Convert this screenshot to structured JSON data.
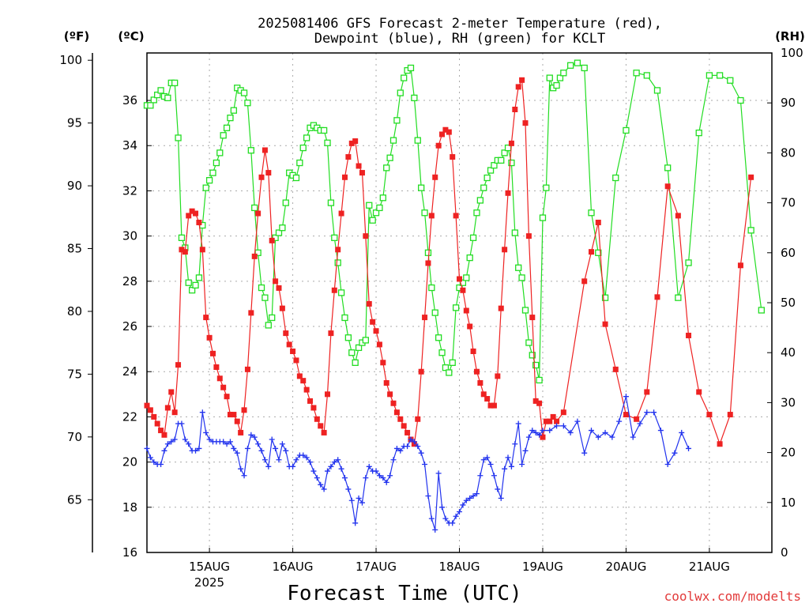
{
  "chart_data": {
    "type": "line",
    "title_line1": "2025081406 GFS Forecast 2-meter Temperature (red),",
    "title_line2": "Dewpoint (blue), RH (green) for KCLT",
    "xlabel": "Forecast Time (UTC)",
    "unit_f": "(ºF)",
    "unit_c": "(ºC)",
    "unit_rh": "(RH)",
    "credit": "coolwx.com/modelts",
    "year_label": "2025",
    "x_start_hours_after_15aug_00z": -18,
    "x_end_hours_after_15aug_00z": 162,
    "x_ticks": [
      {
        "label": "15AUG",
        "h": 0
      },
      {
        "label": "16AUG",
        "h": 24
      },
      {
        "label": "17AUG",
        "h": 48
      },
      {
        "label": "18AUG",
        "h": 72
      },
      {
        "label": "19AUG",
        "h": 96
      },
      {
        "label": "20AUG",
        "h": 120
      },
      {
        "label": "21AUG",
        "h": 144
      }
    ],
    "y_c_range": [
      16,
      38.1
    ],
    "y_f_ticks": [
      65,
      70,
      75,
      80,
      85,
      90,
      95,
      100
    ],
    "y_c_ticks": [
      16,
      18,
      20,
      22,
      24,
      26,
      28,
      30,
      32,
      34,
      36
    ],
    "y_rh_range": [
      0,
      100
    ],
    "y_rh_ticks": [
      0,
      10,
      20,
      30,
      40,
      50,
      60,
      70,
      80,
      90,
      100
    ],
    "grid": true,
    "colors": {
      "temperature": "#ee2222",
      "dewpoint": "#2233ee",
      "rh": "#22dd22"
    },
    "temperature_c": [
      [
        -18,
        22.5
      ],
      [
        -17,
        22.3
      ],
      [
        -16,
        22.0
      ],
      [
        -15,
        21.7
      ],
      [
        -14,
        21.4
      ],
      [
        -13,
        21.2
      ],
      [
        -12,
        22.4
      ],
      [
        -11,
        23.1
      ],
      [
        -10,
        22.2
      ],
      [
        -9,
        24.3
      ],
      [
        -8,
        29.4
      ],
      [
        -7,
        29.3
      ],
      [
        -6,
        30.9
      ],
      [
        -5,
        31.1
      ],
      [
        -4,
        31.0
      ],
      [
        -3,
        30.6
      ],
      [
        -2,
        29.4
      ],
      [
        -1,
        26.4
      ],
      [
        0,
        25.5
      ],
      [
        1,
        24.8
      ],
      [
        2,
        24.2
      ],
      [
        3,
        23.7
      ],
      [
        4,
        23.3
      ],
      [
        5,
        22.9
      ],
      [
        6,
        22.1
      ],
      [
        7,
        22.1
      ],
      [
        8,
        21.8
      ],
      [
        9,
        21.3
      ],
      [
        10,
        22.3
      ],
      [
        11,
        24.1
      ],
      [
        12,
        26.6
      ],
      [
        13,
        29.1
      ],
      [
        14,
        31.0
      ],
      [
        15,
        32.6
      ],
      [
        16,
        33.8
      ],
      [
        17,
        32.8
      ],
      [
        18,
        29.8
      ],
      [
        19,
        28.0
      ],
      [
        20,
        27.7
      ],
      [
        21,
        26.8
      ],
      [
        22,
        25.7
      ],
      [
        23,
        25.2
      ],
      [
        24,
        24.9
      ],
      [
        25,
        24.5
      ],
      [
        26,
        23.8
      ],
      [
        27,
        23.6
      ],
      [
        28,
        23.2
      ],
      [
        29,
        22.7
      ],
      [
        30,
        22.4
      ],
      [
        31,
        21.9
      ],
      [
        32,
        21.6
      ],
      [
        33,
        21.3
      ],
      [
        34,
        23.0
      ],
      [
        35,
        25.7
      ],
      [
        36,
        27.6
      ],
      [
        37,
        29.4
      ],
      [
        38,
        31.0
      ],
      [
        39,
        32.6
      ],
      [
        40,
        33.5
      ],
      [
        41,
        34.1
      ],
      [
        42,
        34.2
      ],
      [
        43,
        33.1
      ],
      [
        44,
        32.8
      ],
      [
        45,
        30.0
      ],
      [
        46,
        27.0
      ],
      [
        47,
        26.2
      ],
      [
        48,
        25.8
      ],
      [
        49,
        25.2
      ],
      [
        50,
        24.4
      ],
      [
        51,
        23.5
      ],
      [
        52,
        23.0
      ],
      [
        53,
        22.6
      ],
      [
        54,
        22.2
      ],
      [
        55,
        21.9
      ],
      [
        56,
        21.6
      ],
      [
        57,
        21.3
      ],
      [
        58,
        21.0
      ],
      [
        59,
        20.8
      ],
      [
        60,
        21.9
      ],
      [
        61,
        24.0
      ],
      [
        62,
        26.4
      ],
      [
        63,
        28.8
      ],
      [
        64,
        30.9
      ],
      [
        65,
        32.6
      ],
      [
        66,
        34.0
      ],
      [
        67,
        34.5
      ],
      [
        68,
        34.7
      ],
      [
        69,
        34.6
      ],
      [
        70,
        33.5
      ],
      [
        71,
        30.9
      ],
      [
        72,
        28.1
      ],
      [
        73,
        27.6
      ],
      [
        74,
        26.7
      ],
      [
        75,
        26.0
      ],
      [
        76,
        24.9
      ],
      [
        77,
        24.0
      ],
      [
        78,
        23.5
      ],
      [
        79,
        23.0
      ],
      [
        80,
        22.8
      ],
      [
        81,
        22.5
      ],
      [
        82,
        22.5
      ],
      [
        83,
        23.8
      ],
      [
        84,
        26.8
      ],
      [
        85,
        29.4
      ],
      [
        86,
        31.9
      ],
      [
        87,
        34.1
      ],
      [
        88,
        35.6
      ],
      [
        89,
        36.6
      ],
      [
        90,
        36.9
      ],
      [
        91,
        35.0
      ],
      [
        92,
        30.0
      ],
      [
        93,
        26.4
      ],
      [
        94,
        22.7
      ],
      [
        95,
        22.6
      ],
      [
        96,
        21.1
      ],
      [
        97,
        21.8
      ],
      [
        98,
        21.8
      ],
      [
        99,
        22.0
      ],
      [
        100,
        21.8
      ],
      [
        102,
        22.2
      ],
      [
        108,
        28.0
      ],
      [
        110,
        29.3
      ],
      [
        112,
        30.6
      ],
      [
        114,
        26.1
      ],
      [
        117,
        24.1
      ],
      [
        120,
        22.1
      ],
      [
        123,
        21.9
      ],
      [
        126,
        23.1
      ],
      [
        129,
        27.3
      ],
      [
        132,
        32.2
      ],
      [
        135,
        30.9
      ],
      [
        138,
        25.6
      ],
      [
        141,
        23.1
      ],
      [
        144,
        22.1
      ],
      [
        147,
        20.8
      ],
      [
        150,
        22.1
      ],
      [
        153,
        28.7
      ],
      [
        156,
        32.6
      ]
    ],
    "dewpoint_c": [
      [
        -18,
        20.6
      ],
      [
        -17,
        20.2
      ],
      [
        -16,
        20.0
      ],
      [
        -15,
        19.9
      ],
      [
        -14,
        19.9
      ],
      [
        -13,
        20.5
      ],
      [
        -12,
        20.8
      ],
      [
        -11,
        20.9
      ],
      [
        -10,
        21.0
      ],
      [
        -9,
        21.7
      ],
      [
        -8,
        21.7
      ],
      [
        -7,
        21.0
      ],
      [
        -6,
        20.8
      ],
      [
        -5,
        20.5
      ],
      [
        -4,
        20.5
      ],
      [
        -3,
        20.6
      ],
      [
        -2,
        22.2
      ],
      [
        -1,
        21.3
      ],
      [
        0,
        21.0
      ],
      [
        1,
        20.9
      ],
      [
        2,
        20.9
      ],
      [
        3,
        20.9
      ],
      [
        4,
        20.9
      ],
      [
        5,
        20.8
      ],
      [
        6,
        20.9
      ],
      [
        7,
        20.6
      ],
      [
        8,
        20.4
      ],
      [
        9,
        19.7
      ],
      [
        10,
        19.4
      ],
      [
        11,
        20.6
      ],
      [
        12,
        21.2
      ],
      [
        13,
        21.1
      ],
      [
        14,
        20.8
      ],
      [
        15,
        20.5
      ],
      [
        16,
        20.1
      ],
      [
        17,
        19.8
      ],
      [
        18,
        21.0
      ],
      [
        19,
        20.6
      ],
      [
        20,
        20.1
      ],
      [
        21,
        20.8
      ],
      [
        22,
        20.5
      ],
      [
        23,
        19.8
      ],
      [
        24,
        19.8
      ],
      [
        25,
        20.1
      ],
      [
        26,
        20.3
      ],
      [
        27,
        20.3
      ],
      [
        28,
        20.2
      ],
      [
        29,
        20.0
      ],
      [
        30,
        19.6
      ],
      [
        31,
        19.3
      ],
      [
        32,
        19.0
      ],
      [
        33,
        18.8
      ],
      [
        34,
        19.6
      ],
      [
        35,
        19.8
      ],
      [
        36,
        20.0
      ],
      [
        37,
        20.1
      ],
      [
        38,
        19.7
      ],
      [
        39,
        19.3
      ],
      [
        40,
        18.8
      ],
      [
        41,
        18.3
      ],
      [
        42,
        17.3
      ],
      [
        43,
        18.4
      ],
      [
        44,
        18.2
      ],
      [
        45,
        19.3
      ],
      [
        46,
        19.8
      ],
      [
        47,
        19.6
      ],
      [
        48,
        19.6
      ],
      [
        49,
        19.4
      ],
      [
        50,
        19.3
      ],
      [
        51,
        19.1
      ],
      [
        52,
        19.4
      ],
      [
        53,
        20.1
      ],
      [
        54,
        20.6
      ],
      [
        55,
        20.5
      ],
      [
        56,
        20.7
      ],
      [
        57,
        20.7
      ],
      [
        58,
        21.0
      ],
      [
        59,
        20.9
      ],
      [
        60,
        20.7
      ],
      [
        61,
        20.4
      ],
      [
        62,
        19.9
      ],
      [
        63,
        18.5
      ],
      [
        64,
        17.5
      ],
      [
        65,
        17.0
      ],
      [
        66,
        19.5
      ],
      [
        67,
        18.0
      ],
      [
        68,
        17.5
      ],
      [
        69,
        17.3
      ],
      [
        70,
        17.3
      ],
      [
        71,
        17.6
      ],
      [
        72,
        17.8
      ],
      [
        73,
        18.1
      ],
      [
        74,
        18.3
      ],
      [
        75,
        18.4
      ],
      [
        76,
        18.5
      ],
      [
        77,
        18.6
      ],
      [
        78,
        19.4
      ],
      [
        79,
        20.1
      ],
      [
        80,
        20.2
      ],
      [
        81,
        19.9
      ],
      [
        82,
        19.4
      ],
      [
        83,
        18.8
      ],
      [
        84,
        18.4
      ],
      [
        85,
        19.7
      ],
      [
        86,
        20.2
      ],
      [
        87,
        19.8
      ],
      [
        88,
        20.8
      ],
      [
        89,
        21.7
      ],
      [
        90,
        19.9
      ],
      [
        91,
        20.5
      ],
      [
        92,
        21.1
      ],
      [
        93,
        21.4
      ],
      [
        94,
        21.3
      ],
      [
        95,
        21.2
      ],
      [
        96,
        21.4
      ],
      [
        98,
        21.4
      ],
      [
        100,
        21.6
      ],
      [
        102,
        21.6
      ],
      [
        104,
        21.3
      ],
      [
        106,
        21.8
      ],
      [
        108,
        20.4
      ],
      [
        110,
        21.4
      ],
      [
        112,
        21.1
      ],
      [
        114,
        21.3
      ],
      [
        116,
        21.1
      ],
      [
        118,
        21.8
      ],
      [
        120,
        22.9
      ],
      [
        122,
        21.1
      ],
      [
        124,
        21.7
      ],
      [
        126,
        22.2
      ],
      [
        128,
        22.2
      ],
      [
        130,
        21.4
      ],
      [
        132,
        19.9
      ],
      [
        134,
        20.4
      ],
      [
        136,
        21.3
      ],
      [
        138,
        20.6
      ]
    ],
    "rh_pct": [
      [
        -18,
        89.5
      ],
      [
        -17,
        89.5
      ],
      [
        -16,
        90.6
      ],
      [
        -15,
        91.6
      ],
      [
        -14,
        92.5
      ],
      [
        -13,
        91.3
      ],
      [
        -12,
        91.0
      ],
      [
        -11,
        94.0
      ],
      [
        -10,
        94.0
      ],
      [
        -9,
        83.0
      ],
      [
        -8,
        63.0
      ],
      [
        -7,
        61.0
      ],
      [
        -6,
        54.0
      ],
      [
        -5,
        52.5
      ],
      [
        -4,
        53.5
      ],
      [
        -3,
        55.0
      ],
      [
        -2,
        65.5
      ],
      [
        -1,
        73.0
      ],
      [
        0,
        74.5
      ],
      [
        1,
        76.0
      ],
      [
        2,
        78.0
      ],
      [
        3,
        80.0
      ],
      [
        4,
        83.5
      ],
      [
        5,
        85.0
      ],
      [
        6,
        87.0
      ],
      [
        7,
        88.5
      ],
      [
        8,
        93.0
      ],
      [
        9,
        92.5
      ],
      [
        10,
        92.0
      ],
      [
        11,
        90.0
      ],
      [
        12,
        80.5
      ],
      [
        13,
        69.0
      ],
      [
        14,
        60.0
      ],
      [
        15,
        53.0
      ],
      [
        16,
        51.0
      ],
      [
        17,
        45.5
      ],
      [
        18,
        47.0
      ],
      [
        19,
        63.0
      ],
      [
        20,
        64.0
      ],
      [
        21,
        65.0
      ],
      [
        22,
        70.0
      ],
      [
        23,
        76.0
      ],
      [
        24,
        75.5
      ],
      [
        25,
        75.0
      ],
      [
        26,
        78.0
      ],
      [
        27,
        81.0
      ],
      [
        28,
        83.0
      ],
      [
        29,
        85.0
      ],
      [
        30,
        85.5
      ],
      [
        31,
        85.0
      ],
      [
        32,
        84.5
      ],
      [
        33,
        84.5
      ],
      [
        34,
        82.0
      ],
      [
        35,
        70.0
      ],
      [
        36,
        63.0
      ],
      [
        37,
        58.0
      ],
      [
        38,
        52.0
      ],
      [
        39,
        47.0
      ],
      [
        40,
        43.0
      ],
      [
        41,
        40.0
      ],
      [
        42,
        38.0
      ],
      [
        43,
        41.0
      ],
      [
        44,
        42.0
      ],
      [
        45,
        42.5
      ],
      [
        46,
        69.5
      ],
      [
        47,
        66.5
      ],
      [
        48,
        68.0
      ],
      [
        49,
        69.0
      ],
      [
        50,
        71.0
      ],
      [
        51,
        77.0
      ],
      [
        52,
        79.0
      ],
      [
        53,
        82.5
      ],
      [
        54,
        86.5
      ],
      [
        55,
        92.0
      ],
      [
        56,
        95.0
      ],
      [
        57,
        96.5
      ],
      [
        58,
        97.0
      ],
      [
        59,
        91.0
      ],
      [
        60,
        82.5
      ],
      [
        61,
        73.0
      ],
      [
        62,
        68.0
      ],
      [
        63,
        60.0
      ],
      [
        64,
        53.0
      ],
      [
        65,
        48.0
      ],
      [
        66,
        43.0
      ],
      [
        67,
        40.0
      ],
      [
        68,
        37.0
      ],
      [
        69,
        36.0
      ],
      [
        70,
        38.0
      ],
      [
        71,
        49.0
      ],
      [
        72,
        53.0
      ],
      [
        73,
        54.0
      ],
      [
        74,
        55.0
      ],
      [
        75,
        59.0
      ],
      [
        76,
        63.0
      ],
      [
        77,
        68.0
      ],
      [
        78,
        70.5
      ],
      [
        79,
        73.0
      ],
      [
        80,
        75.0
      ],
      [
        81,
        76.5
      ],
      [
        82,
        77.5
      ],
      [
        83,
        78.5
      ],
      [
        84,
        78.5
      ],
      [
        85,
        80.0
      ],
      [
        86,
        81.0
      ],
      [
        87,
        78.0
      ],
      [
        88,
        64.0
      ],
      [
        89,
        57.0
      ],
      [
        90,
        55.0
      ],
      [
        91,
        48.5
      ],
      [
        92,
        42.0
      ],
      [
        93,
        39.5
      ],
      [
        94,
        37.5
      ],
      [
        95,
        34.5
      ],
      [
        96,
        67.0
      ],
      [
        97,
        73.0
      ],
      [
        98,
        95.0
      ],
      [
        99,
        93.0
      ],
      [
        100,
        93.5
      ],
      [
        101,
        95.0
      ],
      [
        102,
        96.0
      ],
      [
        104,
        97.5
      ],
      [
        106,
        98.0
      ],
      [
        108,
        97.0
      ],
      [
        110,
        68.0
      ],
      [
        112,
        60.0
      ],
      [
        114,
        51.0
      ],
      [
        117,
        75.0
      ],
      [
        120,
        84.5
      ],
      [
        123,
        96.0
      ],
      [
        126,
        95.5
      ],
      [
        129,
        92.5
      ],
      [
        132,
        77.0
      ],
      [
        135,
        51.0
      ],
      [
        138,
        58.0
      ],
      [
        141,
        84.0
      ],
      [
        144,
        95.5
      ],
      [
        147,
        95.5
      ],
      [
        150,
        94.5
      ],
      [
        153,
        90.5
      ],
      [
        156,
        64.5
      ],
      [
        159,
        48.5
      ]
    ]
  }
}
